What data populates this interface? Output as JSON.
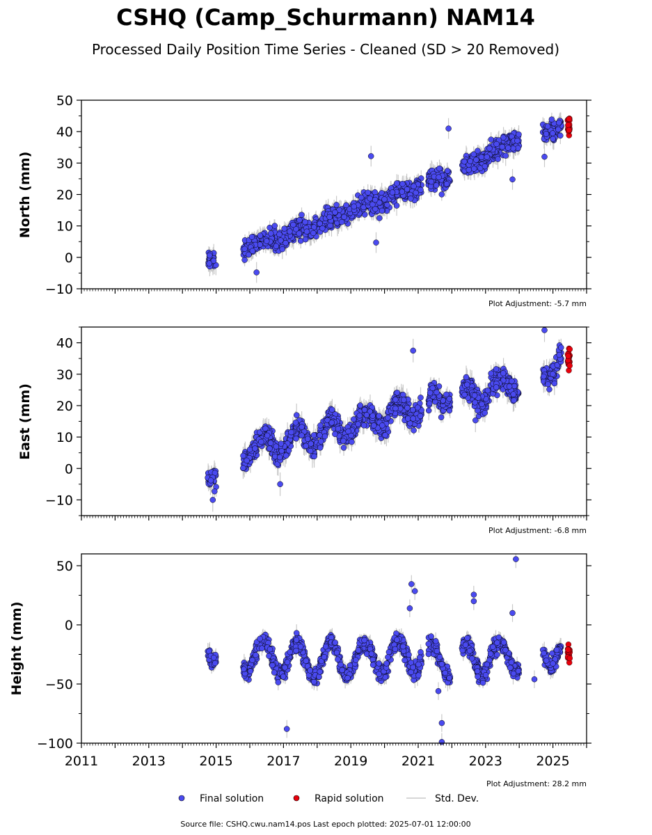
{
  "title": "CSHQ (Camp_Schurmann) NAM14",
  "subtitle": "Processed Daily Position Time Series - Cleaned (SD > 20 Removed)",
  "footer": "Source file: CSHQ.cwu.nam14.pos  Last epoch plotted: 2025-07-01 12:00:00",
  "legend": {
    "final": "Final solution",
    "rapid": "Rapid solution",
    "std": "Std. Dev."
  },
  "colors": {
    "final": "#4a4af0",
    "rapid": "#e8000b",
    "std": "#c8c8c8",
    "edge": "#000000"
  },
  "chart_data": [
    {
      "type": "scatter",
      "ylabel": "North (mm)",
      "adjustment": "Plot Adjustment: -5.7 mm",
      "xlim": [
        2011,
        2026
      ],
      "ylim": [
        -10,
        50
      ],
      "yticks": [
        -10,
        0,
        10,
        20,
        30,
        40,
        50
      ],
      "xticks": [
        2011,
        2013,
        2015,
        2017,
        2019,
        2021,
        2023,
        2025
      ],
      "segments": [
        {
          "start": 2014.75,
          "end": 2015.0,
          "v0": -1,
          "v1": 0
        },
        {
          "start": 2015.8,
          "end": 2018.0,
          "v0": 3,
          "v1": 10
        },
        {
          "start": 2018.05,
          "end": 2021.1,
          "v0": 11,
          "v1": 23
        },
        {
          "start": 2021.3,
          "end": 2021.95,
          "v0": 24,
          "v1": 26
        },
        {
          "start": 2022.3,
          "end": 2024.0,
          "v0": 28,
          "v1": 38
        },
        {
          "start": 2024.7,
          "end": 2025.25,
          "v0": 40,
          "v1": 42
        }
      ],
      "rapid": [
        2025.45,
        2025.5,
        2025.6,
        2025.6
      ],
      "noise": 2.2,
      "seasonal": 0.8,
      "outliers": [
        [
          2019.6,
          32.2
        ],
        [
          2019.75,
          4.7
        ],
        [
          2021.9,
          41
        ],
        [
          2016.2,
          -4.8
        ],
        [
          2023.8,
          24.8
        ],
        [
          2024.75,
          32
        ]
      ]
    },
    {
      "type": "scatter",
      "ylabel": "East (mm)",
      "adjustment": "Plot Adjustment: -6.8 mm",
      "xlim": [
        2011,
        2026
      ],
      "ylim": [
        -15,
        45
      ],
      "yticks": [
        -10,
        0,
        10,
        20,
        30,
        40
      ],
      "xticks": [
        2011,
        2013,
        2015,
        2017,
        2019,
        2021,
        2023,
        2025
      ],
      "segments": [
        {
          "start": 2014.75,
          "end": 2015.0,
          "v0": -1,
          "v1": 1
        },
        {
          "start": 2015.8,
          "end": 2018.0,
          "v0": 6,
          "v1": 11
        },
        {
          "start": 2018.05,
          "end": 2021.1,
          "v0": 11,
          "v1": 20
        },
        {
          "start": 2021.3,
          "end": 2021.95,
          "v0": 19,
          "v1": 25
        },
        {
          "start": 2022.3,
          "end": 2024.0,
          "v0": 22,
          "v1": 28
        },
        {
          "start": 2024.7,
          "end": 2025.25,
          "v0": 31,
          "v1": 35
        }
      ],
      "rapid": [
        2025.45,
        2025.5,
        2025.6,
        2025.6
      ],
      "noise": 2.5,
      "seasonal": 3.5,
      "outliers": [
        [
          2020.85,
          37.5
        ],
        [
          2014.9,
          -10
        ],
        [
          2024.75,
          44
        ],
        [
          2016.9,
          -5
        ],
        [
          2022.7,
          15.3
        ]
      ]
    },
    {
      "type": "scatter",
      "ylabel": "Height (mm)",
      "adjustment": "Plot Adjustment: 28.2 mm",
      "xlim": [
        2011,
        2026
      ],
      "ylim": [
        -100,
        60
      ],
      "yticks": [
        -100,
        -50,
        0,
        50
      ],
      "xticks": [
        2011,
        2013,
        2015,
        2017,
        2019,
        2021,
        2023,
        2025
      ],
      "segments": [
        {
          "start": 2014.75,
          "end": 2015.0,
          "v0": -15,
          "v1": -18
        },
        {
          "start": 2015.8,
          "end": 2018.0,
          "v0": -25,
          "v1": -30
        },
        {
          "start": 2018.05,
          "end": 2021.1,
          "v0": -30,
          "v1": -25
        },
        {
          "start": 2021.3,
          "end": 2021.95,
          "v0": -30,
          "v1": -30
        },
        {
          "start": 2022.3,
          "end": 2024.0,
          "v0": -30,
          "v1": -25
        },
        {
          "start": 2024.7,
          "end": 2025.25,
          "v0": -18,
          "v1": -25
        }
      ],
      "rapid": [
        2025.45,
        2025.5,
        2025.6,
        2025.6
      ],
      "noise": 5,
      "seasonal": 14,
      "outliers": [
        [
          2020.8,
          34.5
        ],
        [
          2020.9,
          28.5
        ],
        [
          2020.75,
          14
        ],
        [
          2022.65,
          25.5
        ],
        [
          2022.65,
          20
        ],
        [
          2023.8,
          10
        ],
        [
          2023.9,
          55.5
        ],
        [
          2017.1,
          -88
        ],
        [
          2021.7,
          -83
        ],
        [
          2021.7,
          -99
        ],
        [
          2021.6,
          -56
        ],
        [
          2024.45,
          -46
        ]
      ]
    }
  ]
}
